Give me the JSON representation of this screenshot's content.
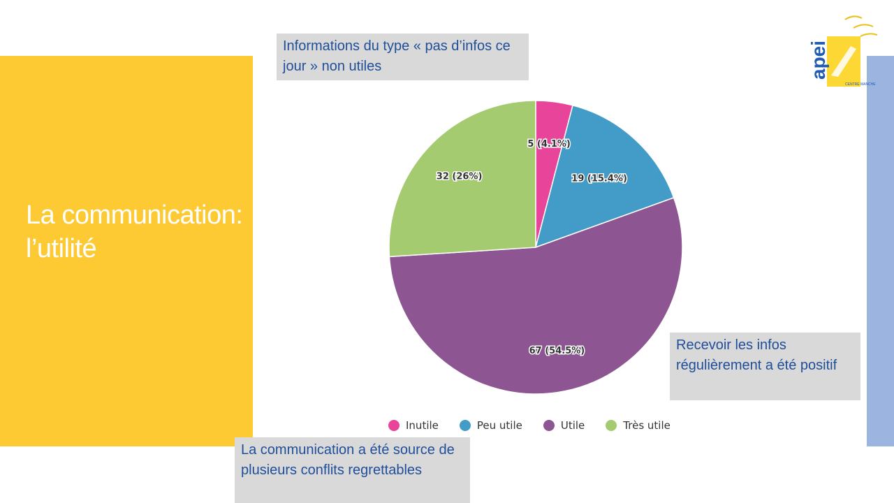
{
  "slide": {
    "title": "La communication: l’utilité"
  },
  "notes": {
    "top": "Informations du type « pas d’infos ce jour » non utiles",
    "right": "Recevoir les infos régulièrement a été positif",
    "bottom": "La communication a été source de plusieurs conflits regrettables"
  },
  "logo": {
    "text": "apei",
    "subtext": "CENTRE MANCHE"
  },
  "colors": {
    "left_panel": "#fdca34",
    "right_bar": "#9cb4e0",
    "note_bg": "#d9d9d9",
    "note_text": "#1f4e99"
  },
  "chart_data": {
    "type": "pie",
    "title": "",
    "legend_position": "bottom",
    "categories": [
      "Inutile",
      "Peu utile",
      "Utile",
      "Très utile"
    ],
    "values": [
      5,
      19,
      67,
      32
    ],
    "labels": [
      "5 (4.1%)",
      "19 (15.4%)",
      "67 (54.5%)",
      "32 (26%)"
    ],
    "colors": [
      "#e8459a",
      "#439cc8",
      "#8e5593",
      "#a4cb6f"
    ]
  }
}
